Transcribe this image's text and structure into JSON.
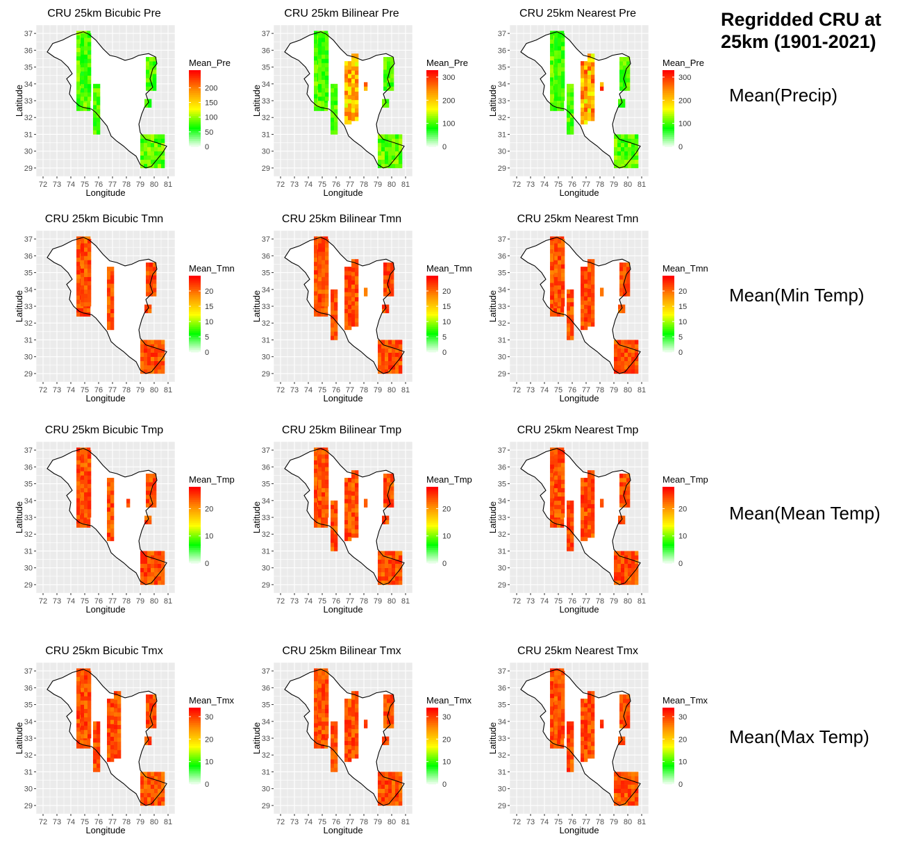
{
  "figure": {
    "title_line1": "Regridded CRU at",
    "title_line2": "25km (1901-2021)",
    "row_labels": [
      "Mean(Precip)",
      "Mean(Min Temp)",
      "Mean(Mean Temp)",
      "Mean(Max Temp)"
    ]
  },
  "colors": {
    "panel_bg": "#ebebeb",
    "grid": "#ffffff",
    "outline": "#000000",
    "scale": [
      "#ffffff",
      "#00ff00",
      "#ffff00",
      "#ff8c00",
      "#ff0000"
    ]
  },
  "chart_data": [
    {
      "type": "heatmap",
      "title": "CRU 25km Bicubic Pre",
      "xlabel": "Longitude",
      "ylabel": "Latitude",
      "legend_title": "Mean_Pre",
      "legend_ticks": [
        0,
        50,
        100,
        150,
        200
      ],
      "legend_max": 260,
      "xlim": [
        72,
        81
      ],
      "ylim": [
        29,
        37
      ],
      "x_ticks": [
        72,
        73,
        74,
        75,
        76,
        77,
        78,
        79,
        80,
        81
      ],
      "y_ticks": [
        29,
        30,
        31,
        32,
        33,
        34,
        35,
        36,
        37
      ],
      "method": "Bicubic",
      "variable": "Pre"
    },
    {
      "type": "heatmap",
      "title": "CRU 25km Bilinear Pre",
      "xlabel": "Longitude",
      "ylabel": "Latitude",
      "legend_title": "Mean_Pre",
      "legend_ticks": [
        0,
        100,
        200,
        300
      ],
      "legend_max": 330,
      "xlim": [
        72,
        81
      ],
      "ylim": [
        29,
        37
      ],
      "x_ticks": [
        72,
        73,
        74,
        75,
        76,
        77,
        78,
        79,
        80,
        81
      ],
      "y_ticks": [
        29,
        30,
        31,
        32,
        33,
        34,
        35,
        36,
        37
      ],
      "method": "Bilinear",
      "variable": "Pre"
    },
    {
      "type": "heatmap",
      "title": "CRU 25km Nearest Pre",
      "xlabel": "Longitude",
      "ylabel": "Latitude",
      "legend_title": "Mean_Pre",
      "legend_ticks": [
        0,
        100,
        200,
        300
      ],
      "legend_max": 330,
      "xlim": [
        72,
        81
      ],
      "ylim": [
        29,
        37
      ],
      "x_ticks": [
        72,
        73,
        74,
        75,
        76,
        77,
        78,
        79,
        80,
        81
      ],
      "y_ticks": [
        29,
        30,
        31,
        32,
        33,
        34,
        35,
        36,
        37
      ],
      "method": "Nearest",
      "variable": "Pre"
    },
    {
      "type": "heatmap",
      "title": "CRU 25km Bicubic Tmn",
      "xlabel": "Longitude",
      "ylabel": "Latitude",
      "legend_title": "Mean_Tmn",
      "legend_ticks": [
        0,
        5,
        10,
        15,
        20
      ],
      "legend_max": 25,
      "xlim": [
        72,
        81
      ],
      "ylim": [
        29,
        37
      ],
      "x_ticks": [
        72,
        73,
        74,
        75,
        76,
        77,
        78,
        79,
        80,
        81
      ],
      "y_ticks": [
        29,
        30,
        31,
        32,
        33,
        34,
        35,
        36,
        37
      ],
      "method": "Bicubic",
      "variable": "Tmn"
    },
    {
      "type": "heatmap",
      "title": "CRU 25km Bilinear Tmn",
      "xlabel": "Longitude",
      "ylabel": "Latitude",
      "legend_title": "Mean_Tmn",
      "legend_ticks": [
        0,
        5,
        10,
        15,
        20
      ],
      "legend_max": 25,
      "xlim": [
        72,
        81
      ],
      "ylim": [
        29,
        37
      ],
      "x_ticks": [
        72,
        73,
        74,
        75,
        76,
        77,
        78,
        79,
        80,
        81
      ],
      "y_ticks": [
        29,
        30,
        31,
        32,
        33,
        34,
        35,
        36,
        37
      ],
      "method": "Bilinear",
      "variable": "Tmn"
    },
    {
      "type": "heatmap",
      "title": "CRU 25km Nearest Tmn",
      "xlabel": "Longitude",
      "ylabel": "Latitude",
      "legend_title": "Mean_Tmn",
      "legend_ticks": [
        0,
        5,
        10,
        15,
        20
      ],
      "legend_max": 25,
      "xlim": [
        72,
        81
      ],
      "ylim": [
        29,
        37
      ],
      "x_ticks": [
        72,
        73,
        74,
        75,
        76,
        77,
        78,
        79,
        80,
        81
      ],
      "y_ticks": [
        29,
        30,
        31,
        32,
        33,
        34,
        35,
        36,
        37
      ],
      "method": "Nearest",
      "variable": "Tmn"
    },
    {
      "type": "heatmap",
      "title": "CRU 25km Bicubic Tmp",
      "xlabel": "Longitude",
      "ylabel": "Latitude",
      "legend_title": "Mean_Tmp",
      "legend_ticks": [
        0,
        10,
        20
      ],
      "legend_max": 28,
      "xlim": [
        72,
        81
      ],
      "ylim": [
        29,
        37
      ],
      "x_ticks": [
        72,
        73,
        74,
        75,
        76,
        77,
        78,
        79,
        80,
        81
      ],
      "y_ticks": [
        29,
        30,
        31,
        32,
        33,
        34,
        35,
        36,
        37
      ],
      "method": "Bicubic",
      "variable": "Tmp"
    },
    {
      "type": "heatmap",
      "title": "CRU 25km Bilinear Tmp",
      "xlabel": "Longitude",
      "ylabel": "Latitude",
      "legend_title": "Mean_Tmp",
      "legend_ticks": [
        0,
        10,
        20
      ],
      "legend_max": 28,
      "xlim": [
        72,
        81
      ],
      "ylim": [
        29,
        37
      ],
      "x_ticks": [
        72,
        73,
        74,
        75,
        76,
        77,
        78,
        79,
        80,
        81
      ],
      "y_ticks": [
        29,
        30,
        31,
        32,
        33,
        34,
        35,
        36,
        37
      ],
      "method": "Bilinear",
      "variable": "Tmp"
    },
    {
      "type": "heatmap",
      "title": "CRU 25km Nearest Tmp",
      "xlabel": "Longitude",
      "ylabel": "Latitude",
      "legend_title": "Mean_Tmp",
      "legend_ticks": [
        0,
        10,
        20
      ],
      "legend_max": 28,
      "xlim": [
        72,
        81
      ],
      "ylim": [
        29,
        37
      ],
      "x_ticks": [
        72,
        73,
        74,
        75,
        76,
        77,
        78,
        79,
        80,
        81
      ],
      "y_ticks": [
        29,
        30,
        31,
        32,
        33,
        34,
        35,
        36,
        37
      ],
      "method": "Nearest",
      "variable": "Tmp"
    },
    {
      "type": "heatmap",
      "title": "CRU 25km Bicubic Tmx",
      "xlabel": "Longitude",
      "ylabel": "Latitude",
      "legend_title": "Mean_Tmx",
      "legend_ticks": [
        0,
        10,
        20,
        30
      ],
      "legend_max": 34,
      "xlim": [
        72,
        81
      ],
      "ylim": [
        29,
        37
      ],
      "x_ticks": [
        72,
        73,
        74,
        75,
        76,
        77,
        78,
        79,
        80,
        81
      ],
      "y_ticks": [
        29,
        30,
        31,
        32,
        33,
        34,
        35,
        36,
        37
      ],
      "method": "Bicubic",
      "variable": "Tmx"
    },
    {
      "type": "heatmap",
      "title": "CRU 25km Bilinear Tmx",
      "xlabel": "Longitude",
      "ylabel": "Latitude",
      "legend_title": "Mean_Tmx",
      "legend_ticks": [
        0,
        10,
        20,
        30
      ],
      "legend_max": 34,
      "xlim": [
        72,
        81
      ],
      "ylim": [
        29,
        37
      ],
      "x_ticks": [
        72,
        73,
        74,
        75,
        76,
        77,
        78,
        79,
        80,
        81
      ],
      "y_ticks": [
        29,
        30,
        31,
        32,
        33,
        34,
        35,
        36,
        37
      ],
      "method": "Bilinear",
      "variable": "Tmx"
    },
    {
      "type": "heatmap",
      "title": "CRU 25km Nearest Tmx",
      "xlabel": "Longitude",
      "ylabel": "Latitude",
      "legend_title": "Mean_Tmx",
      "legend_ticks": [
        0,
        10,
        20,
        30
      ],
      "legend_max": 34,
      "xlim": [
        72,
        81
      ],
      "ylim": [
        29,
        37
      ],
      "x_ticks": [
        72,
        73,
        74,
        75,
        76,
        77,
        78,
        79,
        80,
        81
      ],
      "y_ticks": [
        29,
        30,
        31,
        32,
        33,
        34,
        35,
        36,
        37
      ],
      "method": "Nearest",
      "variable": "Tmx"
    }
  ]
}
